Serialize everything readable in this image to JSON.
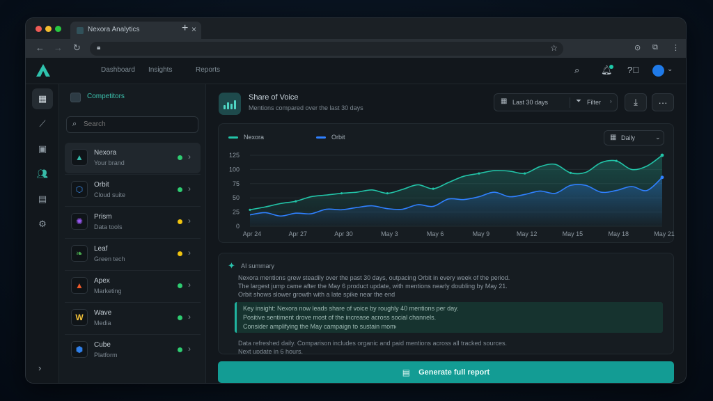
{
  "browser": {
    "tab_title": "Nexora Analytics",
    "url": "",
    "traffic_colors": [
      "#ef5b56",
      "#f4bd2f",
      "#28c840"
    ]
  },
  "topnav": {
    "items": [
      {
        "label": "Dashboard",
        "active": true
      },
      {
        "label": "Insights",
        "active": false
      },
      {
        "label": "Reports",
        "active": false
      }
    ]
  },
  "sidebar": {
    "items": [
      {
        "icon": "grid-icon"
      },
      {
        "icon": "trend-icon"
      },
      {
        "icon": "briefcase-icon"
      },
      {
        "icon": "users-icon"
      },
      {
        "icon": "document-icon"
      },
      {
        "icon": "gear-icon"
      }
    ]
  },
  "list": {
    "title": "Competitors",
    "search_placeholder": "Search",
    "rows": [
      {
        "logo": "▲",
        "logo_color": "#36b6a6",
        "title": "Nexora",
        "sub": "Your brand",
        "status": "#2ecc71"
      },
      {
        "logo": "⬡",
        "logo_color": "#3b8ef0",
        "title": "Orbit",
        "sub": "Cloud suite",
        "status": "#2ecc71"
      },
      {
        "logo": "✺",
        "logo_color": "#9b59f6",
        "title": "Prism",
        "sub": "Data tools",
        "status": "#f1c40f"
      },
      {
        "logo": "❧",
        "logo_color": "#4caf50",
        "title": "Leaf",
        "sub": "Green tech",
        "status": "#f1c40f"
      },
      {
        "logo": "▲",
        "logo_color": "#ef5a2a",
        "title": "Apex",
        "sub": "Marketing",
        "status": "#2ecc71"
      },
      {
        "logo": "W",
        "logo_color": "#f3c23a",
        "title": "Wave",
        "sub": "Media",
        "status": "#2ecc71"
      },
      {
        "logo": "⬢",
        "logo_color": "#2f7fe8",
        "title": "Cube",
        "sub": "Platform",
        "status": "#2ecc71"
      }
    ]
  },
  "main": {
    "title": "Share of Voice",
    "subtitle": "Mentions compared over the last 30 days",
    "date_label": "Last 30 days",
    "filter_label": "Filter"
  },
  "chart_card": {
    "legend": [
      {
        "name": "Nexora",
        "color": "#22c4a8"
      },
      {
        "name": "Orbit",
        "color": "#2f80ff"
      }
    ],
    "range_label": "Daily"
  },
  "chart_data": {
    "type": "area",
    "x": [
      "Apr 24",
      "Apr 25",
      "Apr 26",
      "Apr 27",
      "Apr 28",
      "Apr 29",
      "Apr 30",
      "May 1",
      "May 2",
      "May 3",
      "May 4",
      "May 5",
      "May 6",
      "May 7",
      "May 8",
      "May 9",
      "May 10",
      "May 11",
      "May 12",
      "May 13",
      "May 14",
      "May 15",
      "May 16",
      "May 17",
      "May 18",
      "May 19",
      "May 20",
      "May 21"
    ],
    "x_ticks": [
      "Apr 24",
      "Apr 27",
      "Apr 30",
      "May 3",
      "May 6",
      "May 9",
      "May 12",
      "May 15",
      "May 18",
      "May 21"
    ],
    "y_ticks": [
      0,
      25,
      50,
      75,
      100,
      125
    ],
    "ylim": [
      0,
      125
    ],
    "series": [
      {
        "name": "Nexora",
        "color": "#22c4a8",
        "values": [
          29,
          34,
          40,
          44,
          52,
          55,
          58,
          60,
          64,
          58,
          65,
          73,
          66,
          77,
          88,
          93,
          98,
          97,
          93,
          105,
          109,
          94,
          95,
          112,
          115,
          100,
          106,
          125
        ]
      },
      {
        "name": "Orbit",
        "color": "#2f80ff",
        "values": [
          20,
          24,
          18,
          23,
          22,
          30,
          29,
          33,
          36,
          31,
          30,
          38,
          35,
          48,
          47,
          52,
          60,
          52,
          56,
          62,
          58,
          72,
          72,
          60,
          63,
          70,
          63,
          86
        ]
      }
    ]
  },
  "summary": {
    "title": "AI summary",
    "lines": [
      "Nexora mentions grew steadily over the past 30 days, outpacing Orbit in every week of the period.",
      "The largest jump came after the May 6 product update, with mentions nearly doubling by May 21.",
      "Orbit shows slower growth with a late spike near the end of the range."
    ],
    "highlight": [
      "Key insight: Nexora now leads share of voice by roughly 40 mentions per day.",
      "Positive sentiment drove most of the increase across social channels.",
      "Consider amplifying the May campaign to sustain momentum."
    ],
    "extra": [
      "Data refreshed daily. Comparison includes organic and paid mentions across all tracked sources.",
      "Next update in 6 hours."
    ]
  },
  "cta": {
    "label": "Generate full report"
  }
}
